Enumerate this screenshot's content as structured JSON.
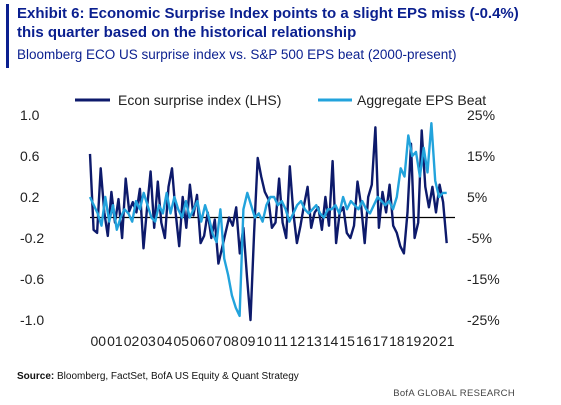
{
  "header": {
    "title": "Exhibit 6: Economic Surprise Index points to a slight EPS miss (-0.4%) this quarter based on the historical relationship",
    "subtitle": "Bloomberg ECO US surprise index vs. S&P 500 EPS beat (2000-present)"
  },
  "footer": {
    "source_label": "Source:",
    "source_text": "Bloomberg, FactSet, BofA US Equity & Quant Strategy",
    "brand": "BofA GLOBAL RESEARCH"
  },
  "colors": {
    "accent": "#0a1f8f",
    "econ": "#0d1a6b",
    "eps": "#22a3dc",
    "zero_line": "#000000"
  },
  "chart_data": {
    "type": "line",
    "x_tick_labels": [
      "00",
      "01",
      "02",
      "03",
      "04",
      "05",
      "06",
      "07",
      "08",
      "09",
      "10",
      "11",
      "12",
      "13",
      "14",
      "15",
      "16",
      "17",
      "18",
      "19",
      "20",
      "21"
    ],
    "x_range": [
      2000,
      2022
    ],
    "left_axis": {
      "ticks": [
        "1.0",
        "0.6",
        "0.2",
        "-0.2",
        "-0.6",
        "-1.0"
      ],
      "range": [
        -1.0,
        1.0
      ]
    },
    "right_axis": {
      "ticks": [
        "25%",
        "15%",
        "5%",
        "-5%",
        "-15%",
        "-25%"
      ],
      "range": [
        -25,
        25
      ]
    },
    "legend_position": "top",
    "series": [
      {
        "name": "Econ surprise index (LHS)",
        "axis": "left",
        "values": [
          0.62,
          -0.12,
          -0.15,
          0.48,
          0.05,
          -0.18,
          0.25,
          -0.05,
          0.18,
          -0.2,
          0.38,
          0.06,
          0.15,
          0.05,
          0.28,
          -0.3,
          0.1,
          0.45,
          -0.1,
          0.35,
          -0.05,
          -0.2,
          0.3,
          0.48,
          0.05,
          -0.28,
          0.2,
          -0.1,
          0.32,
          0.02,
          0.22,
          -0.25,
          -0.18,
          0.05,
          -0.2,
          -0.02,
          -0.45,
          -0.3,
          -0.15,
          0.0,
          -0.08,
          0.1,
          -0.35,
          -0.1,
          -0.58,
          -1.0,
          -0.15,
          0.58,
          0.4,
          0.25,
          0.18,
          -0.1,
          -0.05,
          0.38,
          -0.05,
          -0.2,
          0.5,
          0.05,
          -0.25,
          -0.08,
          0.12,
          0.3,
          -0.1,
          0.05,
          0.1,
          -0.12,
          0.2,
          -0.08,
          0.55,
          -0.25,
          0.05,
          0.1,
          -0.15,
          -0.2,
          -0.08,
          0.35,
          0.12,
          -0.25,
          0.2,
          0.32,
          0.88,
          -0.1,
          0.25,
          0.05,
          0.32,
          -0.08,
          -0.15,
          -0.28,
          -0.35,
          0.05,
          0.72,
          -0.2,
          -0.05,
          0.85,
          0.3,
          0.1,
          0.3,
          0.05,
          0.32,
          0.15,
          -0.25
        ]
      },
      {
        "name": "Aggregate EPS Beat",
        "axis": "right",
        "values": [
          5,
          3,
          1,
          -2,
          5,
          -1,
          3,
          -3,
          0,
          2,
          1,
          -1,
          4,
          2,
          6,
          3,
          0,
          -1,
          3,
          1,
          6,
          1,
          5,
          2,
          0,
          4,
          0,
          2,
          4,
          -1,
          3,
          0,
          -4,
          -6,
          2,
          -10,
          -14,
          -19,
          -22,
          -24,
          2,
          6,
          3,
          0,
          1,
          -1,
          3,
          5,
          5,
          3,
          4,
          2,
          -1,
          1,
          3,
          4,
          2,
          1,
          2,
          3,
          1,
          0,
          2,
          2,
          3,
          1,
          5,
          2,
          4,
          3,
          2,
          4,
          2,
          1,
          3,
          5,
          4,
          3,
          4,
          2,
          5,
          12,
          10,
          20,
          15,
          16,
          10,
          17,
          11,
          23,
          9,
          5,
          6,
          6
        ]
      }
    ]
  }
}
